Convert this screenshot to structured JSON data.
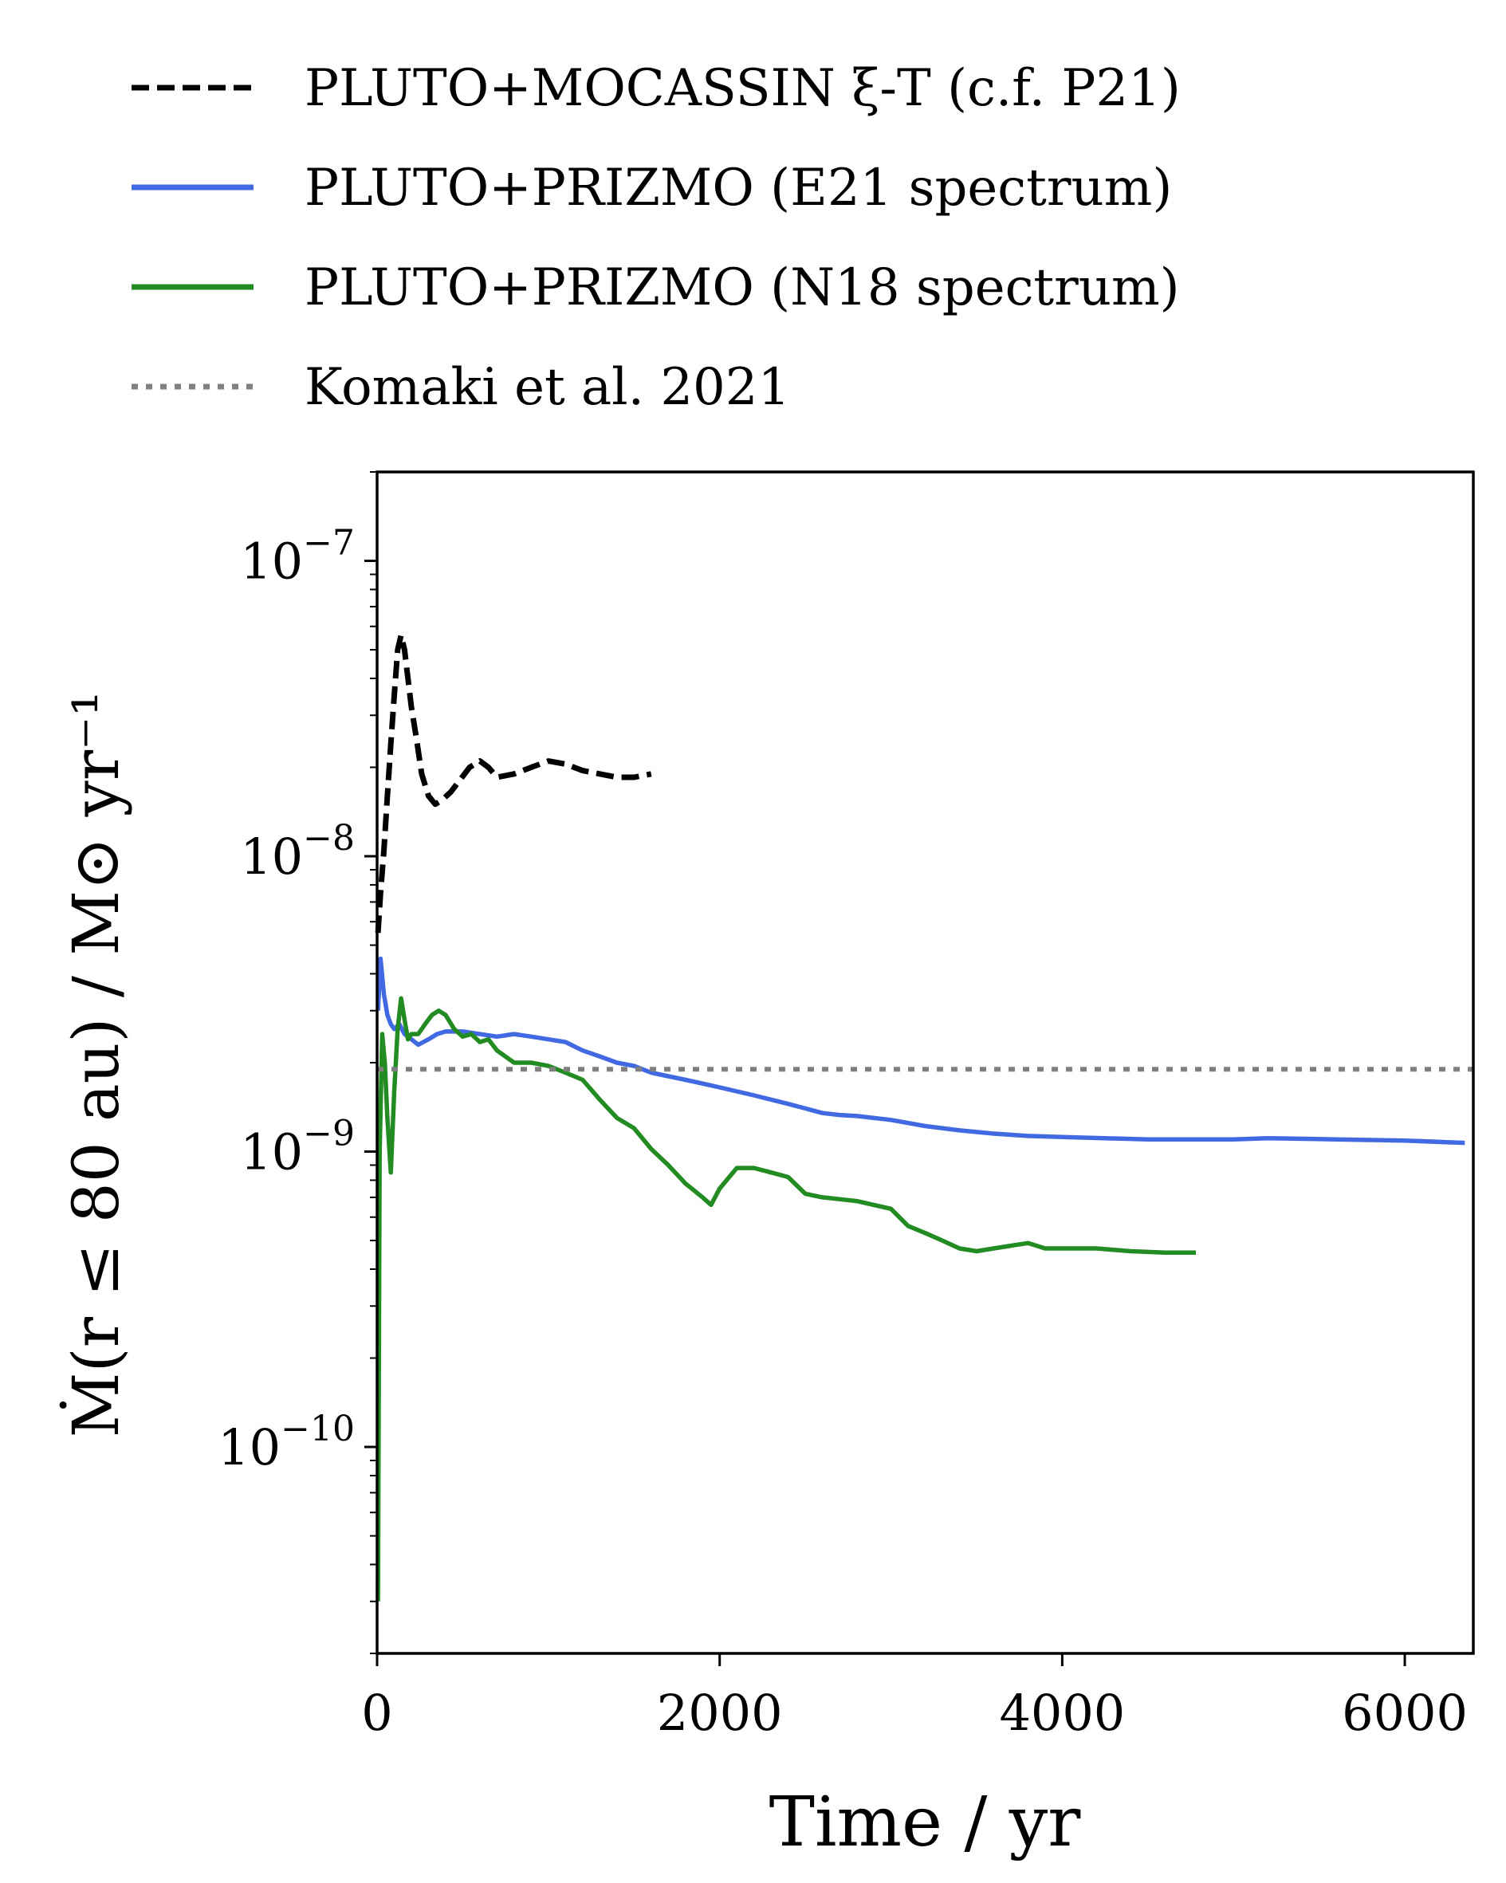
{
  "chart_data": {
    "type": "line",
    "title": "",
    "xlabel": "Time / yr",
    "ylabel": "Ṁ(r ≤ 80 au) / M⊙ yr⁻¹",
    "xlim": [
      0,
      6400
    ],
    "ylim": [
      2e-11,
      2e-07
    ],
    "yscale": "log",
    "grid": false,
    "legend_position": "top (above plot)",
    "x_ticks": [
      "0",
      "2000",
      "4000",
      "6000"
    ],
    "x_tick_values": [
      0,
      2000,
      4000,
      6000
    ],
    "y_ticks": [
      {
        "value": 1e-07,
        "base": "10",
        "exp": "−7"
      },
      {
        "value": 1e-08,
        "base": "10",
        "exp": "−8"
      },
      {
        "value": 1e-09,
        "base": "10",
        "exp": "−9"
      },
      {
        "value": 1e-10,
        "base": "10",
        "exp": "−10"
      }
    ],
    "series": [
      {
        "name": "PLUTO+MOCASSIN ξ-T (c.f. P21)",
        "color": "#000000",
        "style": "dashed",
        "x": [
          5,
          20,
          40,
          60,
          80,
          100,
          120,
          140,
          160,
          180,
          200,
          230,
          260,
          300,
          340,
          380,
          430,
          480,
          540,
          600,
          650,
          700,
          800,
          900,
          1000,
          1100,
          1200,
          1300,
          1400,
          1500,
          1600
        ],
        "y": [
          5.5e-09,
          7.5e-09,
          1.05e-08,
          1.6e-08,
          2.4e-08,
          3.5e-08,
          5e-08,
          5.6e-08,
          5e-08,
          4e-08,
          3.2e-08,
          2.5e-08,
          1.9e-08,
          1.6e-08,
          1.5e-08,
          1.55e-08,
          1.65e-08,
          1.8e-08,
          2e-08,
          2.1e-08,
          2e-08,
          1.85e-08,
          1.9e-08,
          2e-08,
          2.1e-08,
          2.05e-08,
          1.95e-08,
          1.9e-08,
          1.85e-08,
          1.85e-08,
          1.9e-08
        ]
      },
      {
        "name": "PLUTO+PRIZMO (E21 spectrum)",
        "color": "#4169e1",
        "style": "solid",
        "x": [
          5,
          20,
          40,
          60,
          80,
          100,
          130,
          160,
          200,
          240,
          300,
          350,
          400,
          500,
          600,
          700,
          800,
          900,
          1000,
          1100,
          1200,
          1300,
          1400,
          1500,
          1600,
          1700,
          1800,
          1900,
          2000,
          2200,
          2400,
          2500,
          2600,
          2700,
          2800,
          3000,
          3200,
          3400,
          3600,
          3800,
          4000,
          4500,
          5000,
          5200,
          5600,
          6000,
          6350
        ],
        "y": [
          3e-09,
          4.5e-09,
          3.4e-09,
          2.9e-09,
          2.7e-09,
          2.6e-09,
          2.7e-09,
          2.5e-09,
          2.4e-09,
          2.3e-09,
          2.4e-09,
          2.5e-09,
          2.55e-09,
          2.55e-09,
          2.5e-09,
          2.45e-09,
          2.5e-09,
          2.45e-09,
          2.4e-09,
          2.35e-09,
          2.2e-09,
          2.1e-09,
          2e-09,
          1.95e-09,
          1.85e-09,
          1.8e-09,
          1.75e-09,
          1.7e-09,
          1.65e-09,
          1.55e-09,
          1.45e-09,
          1.4e-09,
          1.35e-09,
          1.33e-09,
          1.32e-09,
          1.28e-09,
          1.22e-09,
          1.18e-09,
          1.15e-09,
          1.13e-09,
          1.12e-09,
          1.1e-09,
          1.1e-09,
          1.11e-09,
          1.1e-09,
          1.09e-09,
          1.07e-09
        ]
      },
      {
        "name": "PLUTO+PRIZMO (N18 spectrum)",
        "color": "#228b22",
        "style": "solid",
        "x": [
          5,
          15,
          30,
          45,
          60,
          80,
          100,
          120,
          140,
          160,
          180,
          200,
          240,
          280,
          320,
          360,
          400,
          450,
          500,
          550,
          600,
          650,
          700,
          800,
          900,
          1000,
          1100,
          1200,
          1300,
          1400,
          1500,
          1600,
          1700,
          1800,
          1900,
          1950,
          2000,
          2100,
          2200,
          2300,
          2400,
          2500,
          2600,
          2700,
          2800,
          2900,
          3000,
          3100,
          3200,
          3300,
          3400,
          3500,
          3600,
          3700,
          3800,
          3900,
          4000,
          4200,
          4400,
          4600,
          4780
        ],
        "y": [
          3e-11,
          1e-09,
          2.5e-09,
          2e-09,
          1.3e-09,
          8.5e-10,
          1.6e-09,
          2.6e-09,
          3.3e-09,
          2.8e-09,
          2.4e-09,
          2.5e-09,
          2.5e-09,
          2.7e-09,
          2.9e-09,
          3e-09,
          2.9e-09,
          2.6e-09,
          2.45e-09,
          2.5e-09,
          2.35e-09,
          2.4e-09,
          2.2e-09,
          2e-09,
          2e-09,
          1.95e-09,
          1.85e-09,
          1.75e-09,
          1.5e-09,
          1.3e-09,
          1.2e-09,
          1.02e-09,
          9e-10,
          7.8e-10,
          7e-10,
          6.6e-10,
          7.5e-10,
          8.8e-10,
          8.8e-10,
          8.5e-10,
          8.2e-10,
          7.2e-10,
          7e-10,
          6.9e-10,
          6.8e-10,
          6.6e-10,
          6.4e-10,
          5.6e-10,
          5.3e-10,
          5e-10,
          4.7e-10,
          4.6e-10,
          4.7e-10,
          4.8e-10,
          4.9e-10,
          4.7e-10,
          4.7e-10,
          4.7e-10,
          4.6e-10,
          4.55e-10,
          4.55e-10
        ]
      },
      {
        "name": "Komaki et al. 2021",
        "color": "#808080",
        "style": "dotted",
        "x": [
          0,
          6400
        ],
        "y": [
          1.9e-09,
          1.9e-09
        ]
      }
    ]
  }
}
